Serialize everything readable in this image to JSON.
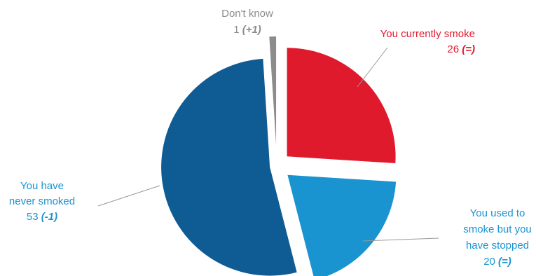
{
  "chart_data": {
    "type": "pie",
    "exploded": true,
    "slices": [
      {
        "name": "You currently smoke",
        "lines": [
          "You currently smoke"
        ],
        "value": 26,
        "change": "(=)",
        "color": "#e01a2d"
      },
      {
        "name": "You used to smoke but you have stopped",
        "lines": [
          "You used to",
          "smoke but you",
          "have stopped"
        ],
        "value": 20,
        "change": "(=)",
        "color": "#1a94d0"
      },
      {
        "name": "You have never smoked",
        "lines": [
          "You have",
          "never smoked"
        ],
        "value": 53,
        "change": "(-1)",
        "color": "#0f5b94"
      },
      {
        "name": "Don't know",
        "lines": [
          "Don't know"
        ],
        "value": 1,
        "change": "(+1)",
        "color": "#8c8c8c"
      }
    ]
  }
}
